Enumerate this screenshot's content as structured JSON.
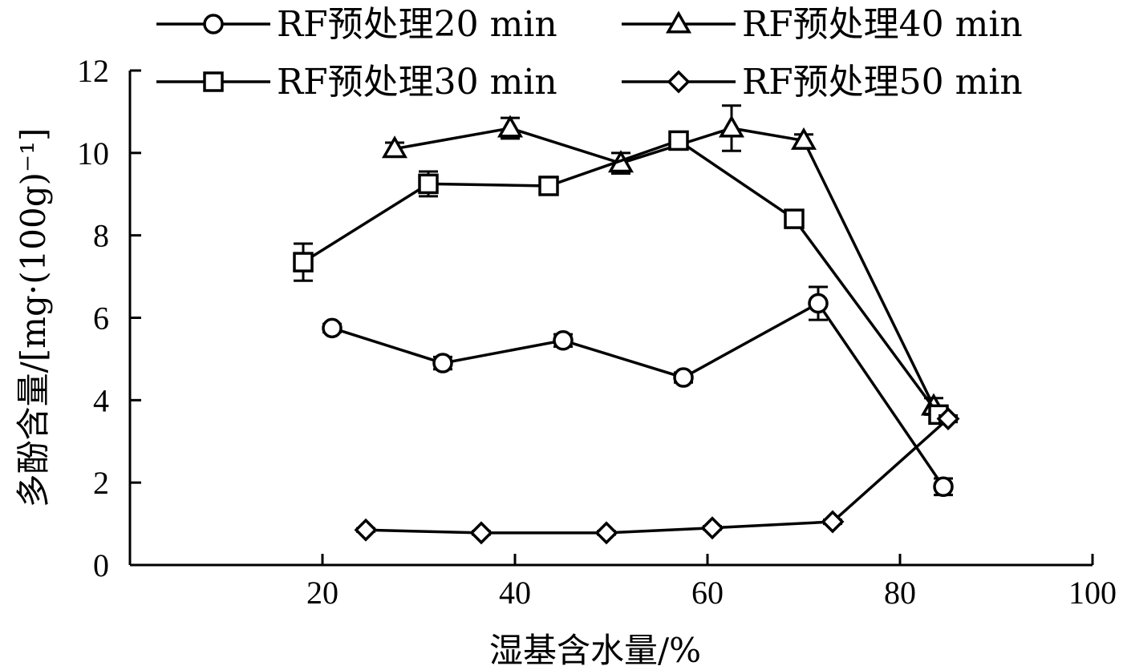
{
  "chart_data": {
    "type": "line",
    "xlabel": "湿基含水量/%",
    "ylabel": "多酚含量/[mg·(100g)⁻¹]",
    "xlim": [
      0,
      100
    ],
    "ylim": [
      0,
      12
    ],
    "xticks": [
      20,
      40,
      60,
      80,
      100
    ],
    "yticks": [
      0,
      2,
      4,
      6,
      8,
      10,
      12
    ],
    "legend_position": "top",
    "series": [
      {
        "name": "RF预处理20 min",
        "marker": "circle",
        "x": [
          21,
          32.5,
          45,
          57.5,
          71.5,
          84.5
        ],
        "y": [
          5.75,
          4.9,
          5.45,
          4.55,
          6.35,
          1.9
        ],
        "err": [
          0.1,
          0.15,
          0.15,
          0.12,
          0.4,
          0.2
        ]
      },
      {
        "name": "RF预处理40 min",
        "marker": "triangle",
        "x": [
          27.5,
          39.5,
          51,
          62.5,
          70,
          83.5
        ],
        "y": [
          10.1,
          10.6,
          9.75,
          10.6,
          10.3,
          3.85
        ],
        "err": [
          0.15,
          0.25,
          0.25,
          0.55,
          0.15,
          0.2
        ]
      },
      {
        "name": "RF预处理30 min",
        "marker": "square",
        "x": [
          18,
          31,
          43.5,
          57,
          69,
          84
        ],
        "y": [
          7.35,
          9.25,
          9.2,
          10.3,
          8.4,
          3.65
        ],
        "err": [
          0.45,
          0.3,
          0.12,
          0.12,
          0.15,
          0.2
        ]
      },
      {
        "name": "RF预处理50 min",
        "marker": "diamond",
        "x": [
          24.5,
          36.5,
          49.5,
          60.5,
          73,
          85
        ],
        "y": [
          0.85,
          0.78,
          0.78,
          0.9,
          1.05,
          3.55
        ],
        "err": [
          0.04,
          0.04,
          0.04,
          0.04,
          0.05,
          0.08
        ]
      }
    ]
  }
}
